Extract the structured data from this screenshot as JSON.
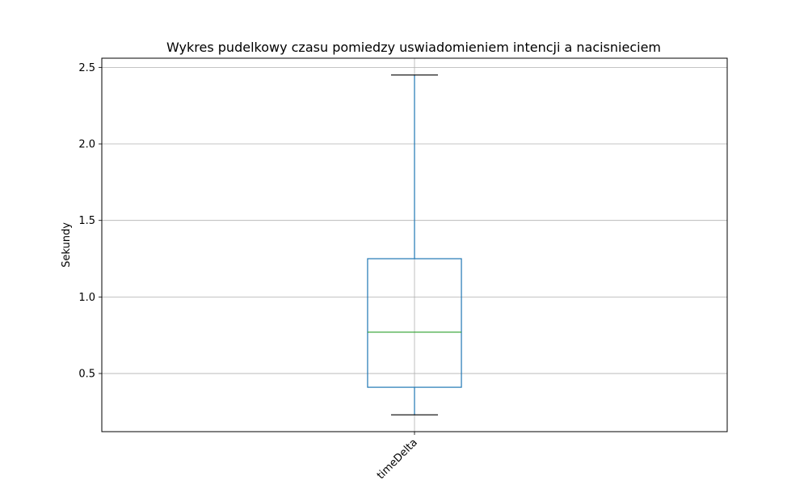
{
  "chart_data": {
    "type": "box",
    "title": "Wykres pudelkowy czasu pomiedzy uswiadomieniem intencji a nacisnieciem",
    "xlabel": "",
    "ylabel": "Sekundy",
    "ylim": [
      0.12,
      2.56
    ],
    "yticks": [
      0.5,
      1.0,
      1.5,
      2.0,
      2.5
    ],
    "ytick_labels": [
      "0.5",
      "1.0",
      "1.5",
      "2.0",
      "2.5"
    ],
    "grid": true,
    "categories": [
      "timeDelta"
    ],
    "boxes": [
      {
        "category": "timeDelta",
        "whisker_low": 0.23,
        "q1": 0.41,
        "median": 0.77,
        "q3": 1.25,
        "whisker_high": 2.45
      }
    ],
    "colors": {
      "box": "#1f77b4",
      "median": "#2ca02c",
      "caps": "#000000",
      "grid": "#b0b0b0"
    }
  }
}
